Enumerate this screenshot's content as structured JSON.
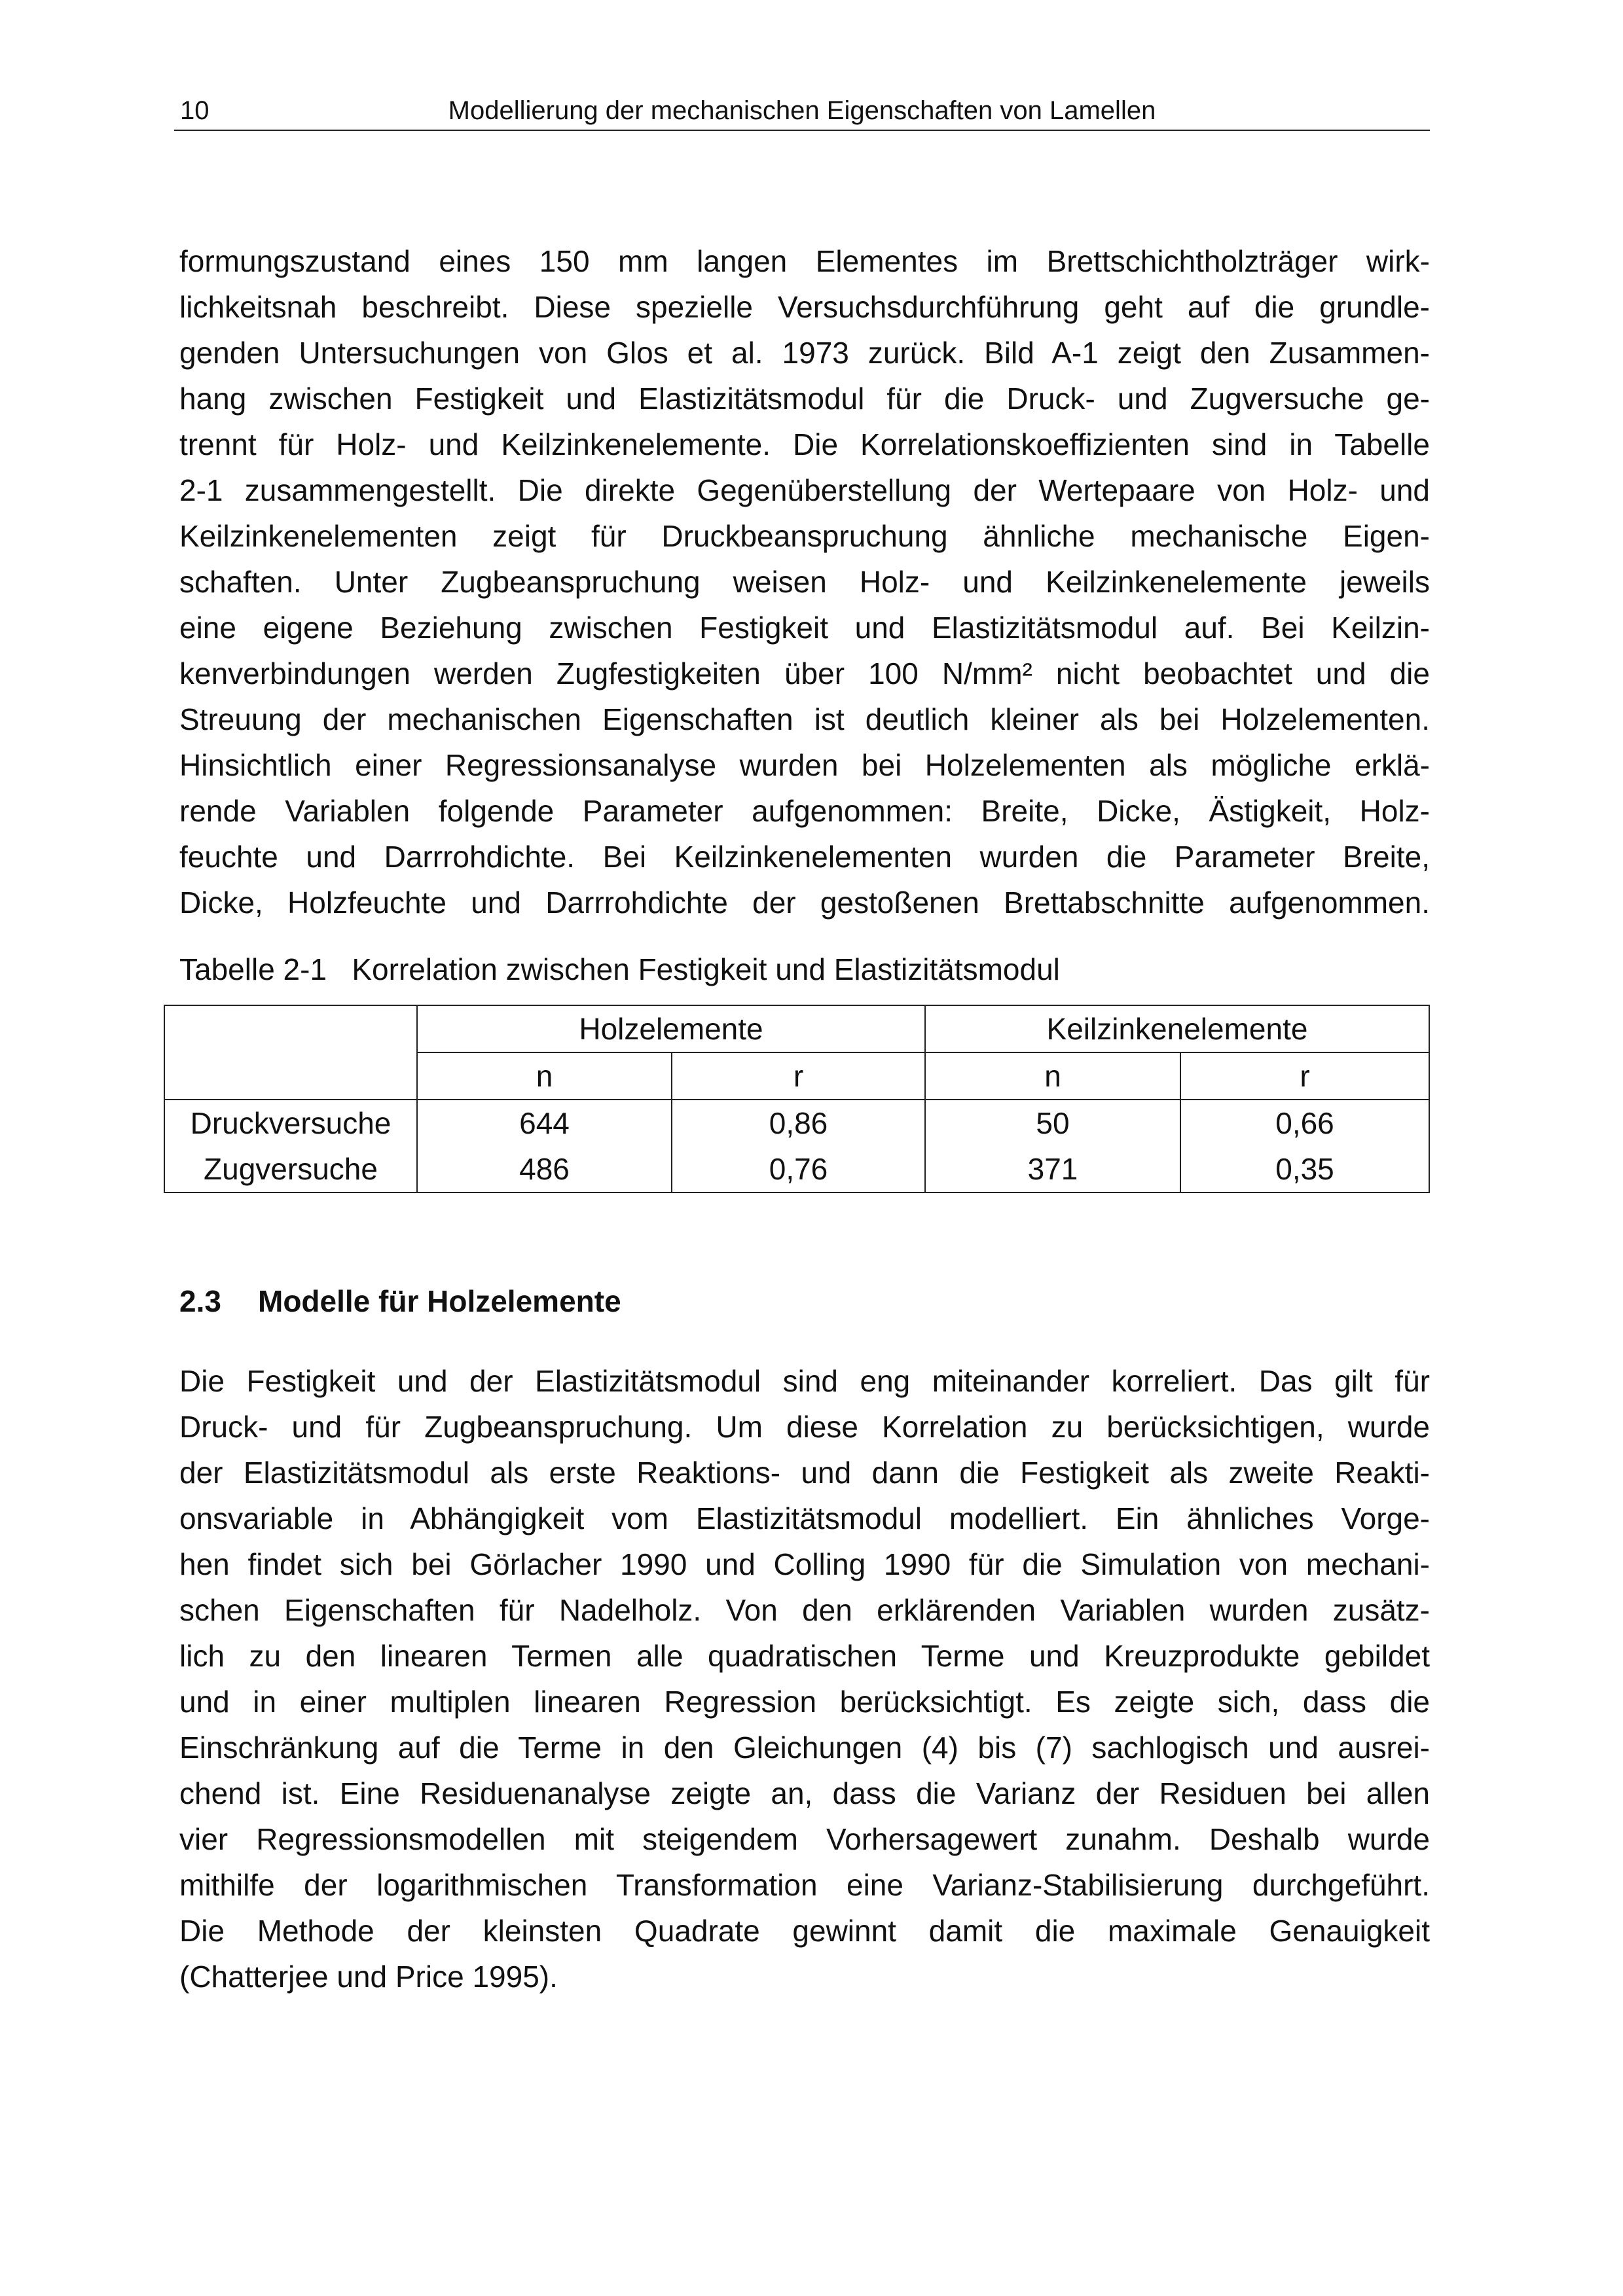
{
  "header": {
    "page_number": "10",
    "running_title": "Modellierung der mechanischen Eigenschaften von Lamellen"
  },
  "paragraph1": [
    "formungszustand eines 150 mm langen Elementes im Brettschichtholzträger wirk-",
    "lichkeitsnah beschreibt. Diese spezielle Versuchsdurchführung geht auf die grundle-",
    "genden Untersuchungen von Glos et al. 1973 zurück. Bild A-1 zeigt den Zusammen-",
    "hang zwischen Festigkeit und Elastizitätsmodul für die Druck- und Zugversuche ge-",
    "trennt für Holz- und Keilzinkenelemente. Die Korrelationskoeffizienten sind in Tabelle",
    "2-1 zusammengestellt. Die direkte Gegenüberstellung der Wertepaare von Holz- und",
    "Keilzinkenelementen zeigt für Druckbeanspruchung ähnliche mechanische Eigen-",
    "schaften. Unter Zugbeanspruchung weisen Holz- und Keilzinkenelemente jeweils",
    "eine eigene Beziehung zwischen Festigkeit und Elastizitätsmodul auf. Bei Keilzin-",
    "kenverbindungen werden Zugfestigkeiten über 100 N/mm² nicht beobachtet und die",
    "Streuung der mechanischen Eigenschaften ist deutlich kleiner als bei Holzelementen.",
    "Hinsichtlich einer Regressionsanalyse wurden bei Holzelementen als mögliche erklä-",
    "rende Variablen folgende Parameter aufgenommen: Breite, Dicke, Ästigkeit, Holz-",
    "feuchte und Darrrohdichte. Bei Keilzinkenelementen wurden die Parameter Breite,",
    "Dicke, Holzfeuchte und Darrrohdichte der gestoßenen Brettabschnitte aufgenommen."
  ],
  "table": {
    "caption": "Tabelle 2-1   Korrelation zwischen Festigkeit und Elastizitätsmodul",
    "group_headers": [
      "Holzelemente",
      "Keilzinkenelemente"
    ],
    "sub_headers": [
      "n",
      "r",
      "n",
      "r"
    ],
    "rows": [
      {
        "label": "Druckversuche",
        "values": [
          "644",
          "0,86",
          "50",
          "0,66"
        ]
      },
      {
        "label": "Zugversuche",
        "values": [
          "486",
          "0,76",
          "371",
          "0,35"
        ]
      }
    ]
  },
  "section": {
    "number": "2.3",
    "title": "Modelle für Holzelemente"
  },
  "paragraph2": [
    "Die Festigkeit und der Elastizitätsmodul sind eng miteinander korreliert. Das gilt für",
    "Druck- und für Zugbeanspruchung. Um diese Korrelation zu berücksichtigen, wurde",
    "der Elastizitätsmodul als erste Reaktions- und dann die Festigkeit als zweite Reakti-",
    "onsvariable in Abhängigkeit vom Elastizitätsmodul modelliert. Ein ähnliches Vorge-",
    "hen findet sich bei Görlacher 1990 und Colling 1990 für die Simulation von mechani-",
    "schen Eigenschaften für Nadelholz. Von den erklärenden Variablen wurden zusätz-",
    "lich zu den linearen Termen alle quadratischen Terme und Kreuzprodukte gebildet",
    "und in einer multiplen linearen Regression berücksichtigt. Es zeigte sich, dass die",
    "Einschränkung auf die Terme in den Gleichungen (4) bis (7) sachlogisch und ausrei-",
    "chend ist. Eine Residuenanalyse zeigte an, dass die Varianz der Residuen bei allen",
    "vier Regressionsmodellen mit steigendem Vorhersagewert zunahm. Deshalb wurde",
    "mithilfe der logarithmischen Transformation eine Varianz-Stabilisierung durchgeführt.",
    "Die Methode der kleinsten Quadrate gewinnt damit die maximale Genauigkeit",
    "(Chatterjee und Price 1995)."
  ]
}
